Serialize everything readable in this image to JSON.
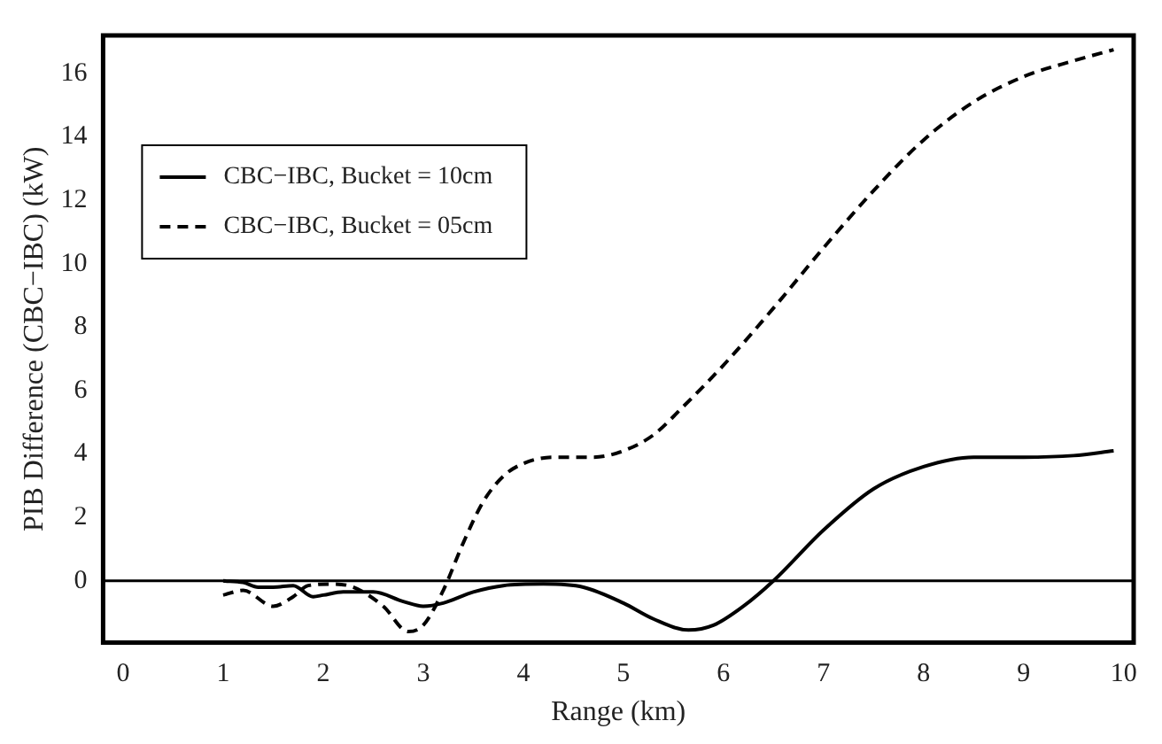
{
  "chart_data": {
    "type": "line",
    "xlabel": "Range (km)",
    "ylabel": "PIB Difference (CBC−IBC) (kW)",
    "xlim": [
      -0.2,
      10.1
    ],
    "xticks": [
      0,
      1,
      2,
      3,
      4,
      5,
      6,
      7,
      8,
      9,
      10
    ],
    "ylim": [
      -1.95,
      17.2
    ],
    "yticks": [
      0,
      2,
      4,
      6,
      8,
      10,
      12,
      14,
      16
    ],
    "grid": false,
    "legend": "top left",
    "marker": "none",
    "ref_lines": [
      {
        "axis": "y",
        "value": 0,
        "color": "#000000"
      }
    ],
    "series": [
      {
        "name": "CBC−IBC, Bucket = 10cm",
        "color": "#000000",
        "line_style": "solid",
        "x": [
          1,
          1.2,
          1.35,
          1.5,
          1.7,
          1.9,
          2.0,
          2.2,
          2.5,
          2.8,
          3.0,
          3.2,
          3.5,
          3.8,
          4.2,
          4.6,
          5.0,
          5.3,
          5.65,
          5.9,
          6.2,
          6.5,
          7.0,
          7.5,
          8.0,
          8.5,
          9.0,
          9.5,
          9.9
        ],
        "values": [
          0.0,
          -0.05,
          -0.2,
          -0.2,
          -0.15,
          -0.5,
          -0.45,
          -0.35,
          -0.35,
          -0.65,
          -0.8,
          -0.7,
          -0.35,
          -0.15,
          -0.1,
          -0.2,
          -0.7,
          -1.2,
          -1.55,
          -1.4,
          -0.8,
          0,
          1.6,
          2.9,
          3.6,
          3.9,
          3.9,
          3.95,
          4.1
        ]
      },
      {
        "name": "CBC−IBC, Bucket = 05cm",
        "color": "#000000",
        "line_style": "dashed",
        "x": [
          1,
          1.2,
          1.5,
          1.7,
          1.85,
          2.1,
          2.3,
          2.6,
          2.85,
          3.0,
          3.2,
          3.4,
          3.6,
          3.8,
          4.0,
          4.3,
          4.7,
          5.0,
          5.3,
          5.6,
          6.0,
          6.5,
          7.0,
          7.5,
          8.0,
          8.5,
          9.0,
          9.5,
          9.9
        ],
        "values": [
          -0.45,
          -0.3,
          -0.8,
          -0.5,
          -0.15,
          -0.1,
          -0.2,
          -0.8,
          -1.6,
          -1.4,
          -0.3,
          1.2,
          2.5,
          3.3,
          3.7,
          3.9,
          3.9,
          4.1,
          4.6,
          5.5,
          6.8,
          8.6,
          10.5,
          12.3,
          13.9,
          15.1,
          15.9,
          16.4,
          16.75
        ]
      }
    ]
  }
}
